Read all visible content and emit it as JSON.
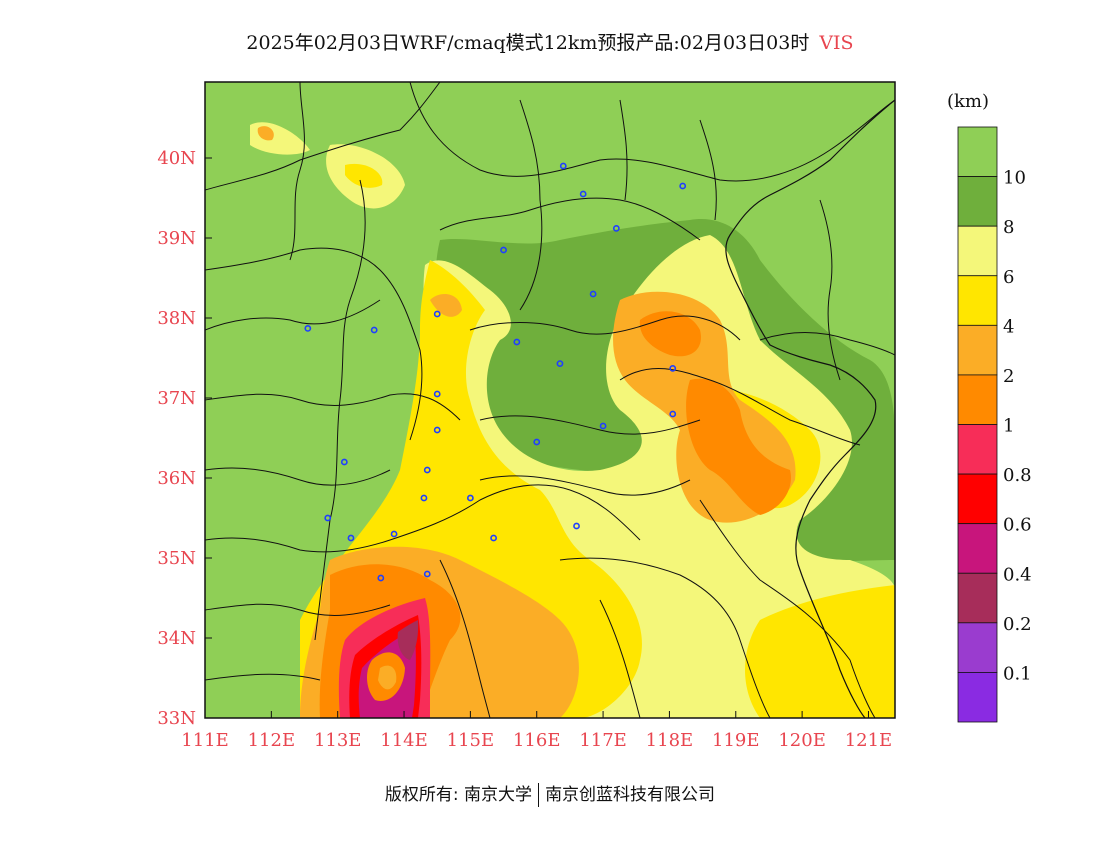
{
  "title": {
    "main": "2025年02月03日WRF/cmaq模式12km预报产品:02月03日03时",
    "variable": "VIS"
  },
  "legend": {
    "unit": "(km)",
    "levels": [
      {
        "label": "",
        "color": "#8fcf56"
      },
      {
        "label": "10",
        "color": "#6faf3c"
      },
      {
        "label": "8",
        "color": "#f4f77a"
      },
      {
        "label": "6",
        "color": "#ffe600"
      },
      {
        "label": "4",
        "color": "#fbad26"
      },
      {
        "label": "2",
        "color": "#ff8a00"
      },
      {
        "label": "1",
        "color": "#f72d58"
      },
      {
        "label": "0.8",
        "color": "#ff0000"
      },
      {
        "label": "0.6",
        "color": "#c8157c"
      },
      {
        "label": "0.4",
        "color": "#a72d5a"
      },
      {
        "label": "0.2",
        "color": "#9a3ccf"
      },
      {
        "label": "0.1",
        "color": "#8a2be2"
      }
    ]
  },
  "axes": {
    "x_ticks": [
      "111E",
      "112E",
      "113E",
      "114E",
      "115E",
      "116E",
      "117E",
      "118E",
      "119E",
      "120E",
      "121E"
    ],
    "x_values": [
      111,
      112,
      113,
      114,
      115,
      116,
      117,
      118,
      119,
      120,
      121
    ],
    "y_ticks": [
      "33N",
      "34N",
      "35N",
      "36N",
      "37N",
      "38N",
      "39N",
      "40N"
    ],
    "y_values": [
      33,
      34,
      35,
      36,
      37,
      38,
      39,
      40
    ],
    "lon_range": [
      111,
      121.4
    ],
    "lat_range": [
      33,
      40.95
    ]
  },
  "stations": [
    [
      116.4,
      39.9
    ],
    [
      116.7,
      39.55
    ],
    [
      118.2,
      39.65
    ],
    [
      117.2,
      39.12
    ],
    [
      115.5,
      38.85
    ],
    [
      116.85,
      38.3
    ],
    [
      112.55,
      37.87
    ],
    [
      113.55,
      37.85
    ],
    [
      114.5,
      38.05
    ],
    [
      115.7,
      37.7
    ],
    [
      116.35,
      37.43
    ],
    [
      118.05,
      37.37
    ],
    [
      114.5,
      37.05
    ],
    [
      114.5,
      36.6
    ],
    [
      116.0,
      36.45
    ],
    [
      117.0,
      36.65
    ],
    [
      118.05,
      36.8
    ],
    [
      113.1,
      36.2
    ],
    [
      114.35,
      36.1
    ],
    [
      114.3,
      35.75
    ],
    [
      115.0,
      35.75
    ],
    [
      112.85,
      35.5
    ],
    [
      113.2,
      35.25
    ],
    [
      113.85,
      35.3
    ],
    [
      115.35,
      35.25
    ],
    [
      116.6,
      35.4
    ],
    [
      114.35,
      34.8
    ],
    [
      113.65,
      34.75
    ]
  ],
  "footer": {
    "owner": "版权所有: 南京大学",
    "company": "南京创蓝科技有限公司"
  }
}
